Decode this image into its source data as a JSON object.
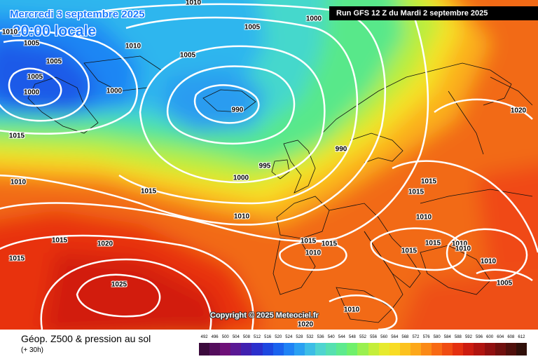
{
  "header": {
    "date": "Mercredi 3 septembre 2025",
    "time": "20:00 locale",
    "run": "Run GFS 12 Z du Mardi 2 septembre 2025"
  },
  "copyright": "Copyright © 2025 Meteociel.fr",
  "legend": {
    "title": "Géop. Z500 & pression au sol",
    "subtitle": "(+ 30h)",
    "values": [
      "492",
      "496",
      "500",
      "504",
      "508",
      "512",
      "516",
      "520",
      "524",
      "528",
      "532",
      "536",
      "540",
      "544",
      "548",
      "552",
      "556",
      "560",
      "564",
      "568",
      "572",
      "576",
      "580",
      "584",
      "588",
      "592",
      "596",
      "600",
      "604",
      "608",
      "612"
    ],
    "colors": [
      "#3b0a3c",
      "#540d5c",
      "#6e1078",
      "#5a1894",
      "#4020b0",
      "#2b2fcc",
      "#1d47e0",
      "#1a62ee",
      "#1f82f5",
      "#2aa0f2",
      "#3dbde6",
      "#4fd4d0",
      "#56e0b0",
      "#5eea8e",
      "#70f06c",
      "#9af050",
      "#c4ee3a",
      "#e6ea2e",
      "#f8dc24",
      "#fcc21e",
      "#fda81a",
      "#fb8a16",
      "#f86a14",
      "#f04c12",
      "#e43010",
      "#cc1c10",
      "#b01410",
      "#901010",
      "#70100e",
      "#50100c",
      "#30100a"
    ]
  },
  "pressure_labels": [
    "1005",
    "1010",
    "1010",
    "1005",
    "1005",
    "1005",
    "1000",
    "1000",
    "1010",
    "1005",
    "1000",
    "990",
    "1015",
    "1010",
    "990",
    "995",
    "1000",
    "1015",
    "1010",
    "1015",
    "1015",
    "1020",
    "1015",
    "1015",
    "1010",
    "1015",
    "1015",
    "1010",
    "1020",
    "1015",
    "1015",
    "1010",
    "1010",
    "1005",
    "1010",
    "1025",
    "1010",
    "1020"
  ],
  "colors": {
    "run_box_bg": "#000000",
    "date_text": "#1b7bff",
    "isobar": "#ffffff"
  }
}
